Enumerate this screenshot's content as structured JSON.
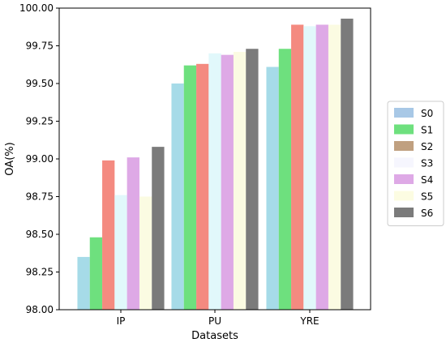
{
  "chart_data": {
    "type": "bar",
    "title": "",
    "xlabel": "Datasets",
    "ylabel": "OA(%)",
    "ylim": [
      98.0,
      100.0
    ],
    "yticks": [
      "98.00",
      "98.25",
      "98.50",
      "98.75",
      "99.00",
      "99.25",
      "99.50",
      "99.75",
      "100.00"
    ],
    "categories": [
      "IP",
      "PU",
      "YRE"
    ],
    "series": [
      {
        "name": "S0",
        "color": "#a6dbe8",
        "values": [
          98.35,
          99.5,
          99.61
        ]
      },
      {
        "name": "S1",
        "color": "#6ee07e",
        "values": [
          98.48,
          99.62,
          99.73
        ]
      },
      {
        "name": "S2",
        "color": "#f48a80",
        "values": [
          98.99,
          99.63,
          99.89
        ]
      },
      {
        "name": "S3",
        "color": "#e1f8fb",
        "values": [
          98.76,
          99.7,
          99.88
        ]
      },
      {
        "name": "S4",
        "color": "#dea9e6",
        "values": [
          99.01,
          99.69,
          99.89
        ]
      },
      {
        "name": "S5",
        "color": "#fbfbe2",
        "values": [
          98.75,
          99.71,
          99.89
        ]
      },
      {
        "name": "S6",
        "color": "#7b7b7b",
        "values": [
          99.08,
          99.73,
          99.93
        ]
      }
    ],
    "legend_colors": [
      "#a8c8e6",
      "#6ee07e",
      "#c0a080",
      "#f6f6fe",
      "#dea9e6",
      "#fcfce2",
      "#7b7b7b"
    ],
    "grid": false,
    "legend_position": "right"
  }
}
